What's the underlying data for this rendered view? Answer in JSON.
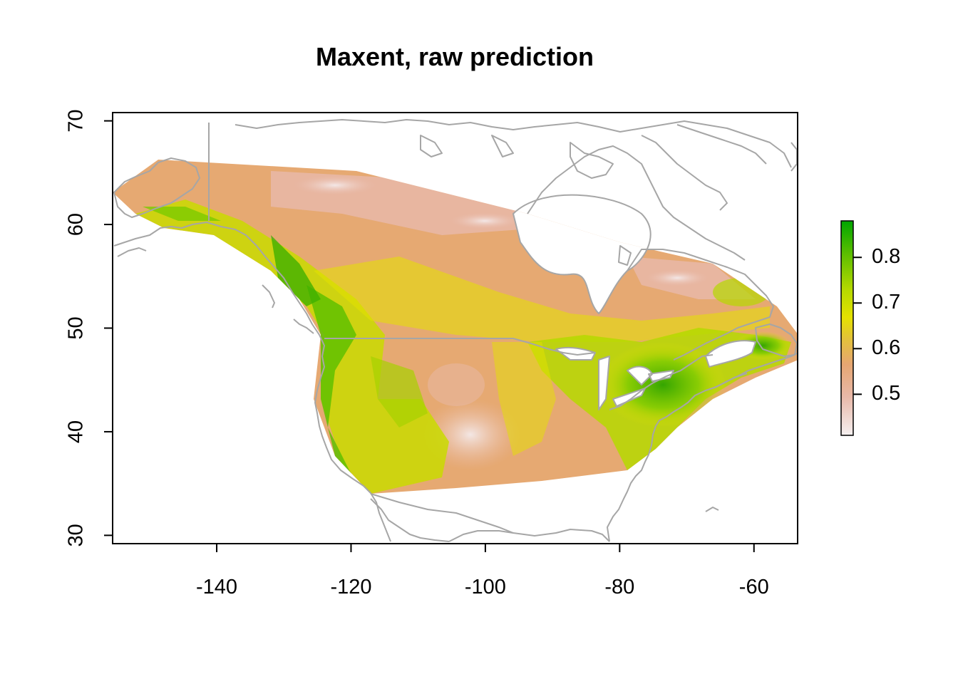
{
  "chart_data": {
    "type": "heatmap",
    "title": "Maxent, raw prediction",
    "xlabel": "",
    "ylabel": "",
    "xlim": [
      -155.5,
      -53.5
    ],
    "ylim": [
      29.2,
      70.8
    ],
    "x_ticks": [
      -140,
      -120,
      -100,
      -80,
      -60
    ],
    "y_ticks": [
      30,
      40,
      50,
      60,
      70
    ],
    "x_tick_labels": [
      "-140",
      "-120",
      "-100",
      "-80",
      "-60"
    ],
    "y_tick_labels": [
      "30",
      "40",
      "50",
      "60",
      "70"
    ],
    "legend": {
      "type": "colorbar",
      "placement": "right",
      "range": [
        0.41,
        0.88
      ],
      "ticks": [
        0.5,
        0.6,
        0.7,
        0.8
      ],
      "tick_labels": [
        "0.5",
        "0.6",
        "0.7",
        "0.8"
      ],
      "colors": [
        "#f5f0f0",
        "#e8b8a8",
        "#e6a672",
        "#e3c23a",
        "#e4e100",
        "#b5d900",
        "#5fbf00",
        "#00a600"
      ]
    },
    "prediction_extent": {
      "description_region": "North America (Alaska, Canada, United States)",
      "lat_range": [
        34,
        66.2
      ],
      "lon_range": [
        -155.5,
        -53.5
      ]
    },
    "colors": {
      "low": "#f2f2f2",
      "mid_low": "#e8b9a8",
      "mid": "#e6a972",
      "mid_high": "#e6e000",
      "high": "#00a600",
      "map_lines": "#a6a6a6"
    }
  }
}
